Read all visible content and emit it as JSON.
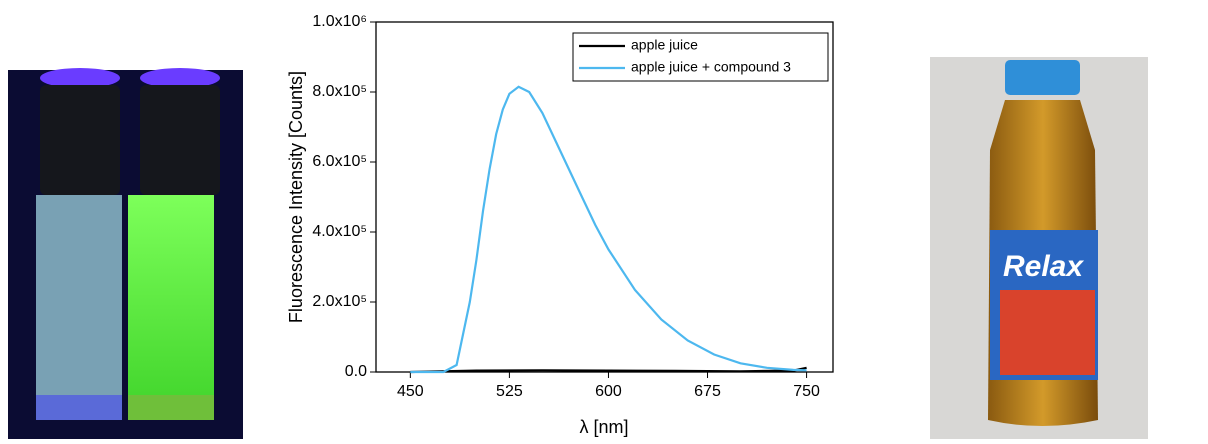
{
  "chart_data": {
    "type": "line",
    "xlabel": "λ [nm]",
    "ylabel": "Fluorescence Intensity [Counts]",
    "xlim": [
      424,
      770
    ],
    "xticks": [
      450,
      525,
      600,
      675,
      750
    ],
    "ylim": [
      0,
      1000000
    ],
    "yticks": [
      {
        "value": 0,
        "label": "0.0"
      },
      {
        "value": 200000,
        "label": "2.0x10⁵"
      },
      {
        "value": 400000,
        "label": "4.0x10⁵"
      },
      {
        "value": 600000,
        "label": "6.0x10⁵"
      },
      {
        "value": 800000,
        "label": "8.0x10⁵"
      },
      {
        "value": 1000000,
        "label": "1.0x10⁶"
      }
    ],
    "legend": "upper right",
    "series": [
      {
        "name": "apple juice",
        "color": "#000000",
        "x": [
          450,
          500,
          550,
          600,
          650,
          700,
          740,
          750
        ],
        "values": [
          0,
          4000,
          5000,
          4000,
          3000,
          2000,
          4000,
          12000
        ]
      },
      {
        "name": "apple juice + compound 3",
        "color": "#4db8ef",
        "x": [
          450,
          475,
          485,
          495,
          500,
          505,
          510,
          515,
          520,
          525,
          532,
          540,
          550,
          560,
          570,
          580,
          590,
          600,
          620,
          640,
          660,
          680,
          700,
          720,
          740,
          750
        ],
        "values": [
          0,
          0,
          20000,
          200000,
          320000,
          460000,
          580000,
          680000,
          750000,
          795000,
          815000,
          800000,
          740000,
          660000,
          580000,
          500000,
          420000,
          350000,
          235000,
          150000,
          90000,
          50000,
          25000,
          12000,
          6000,
          5000
        ]
      }
    ]
  },
  "photos": {
    "bottle_brand": "Relax"
  }
}
